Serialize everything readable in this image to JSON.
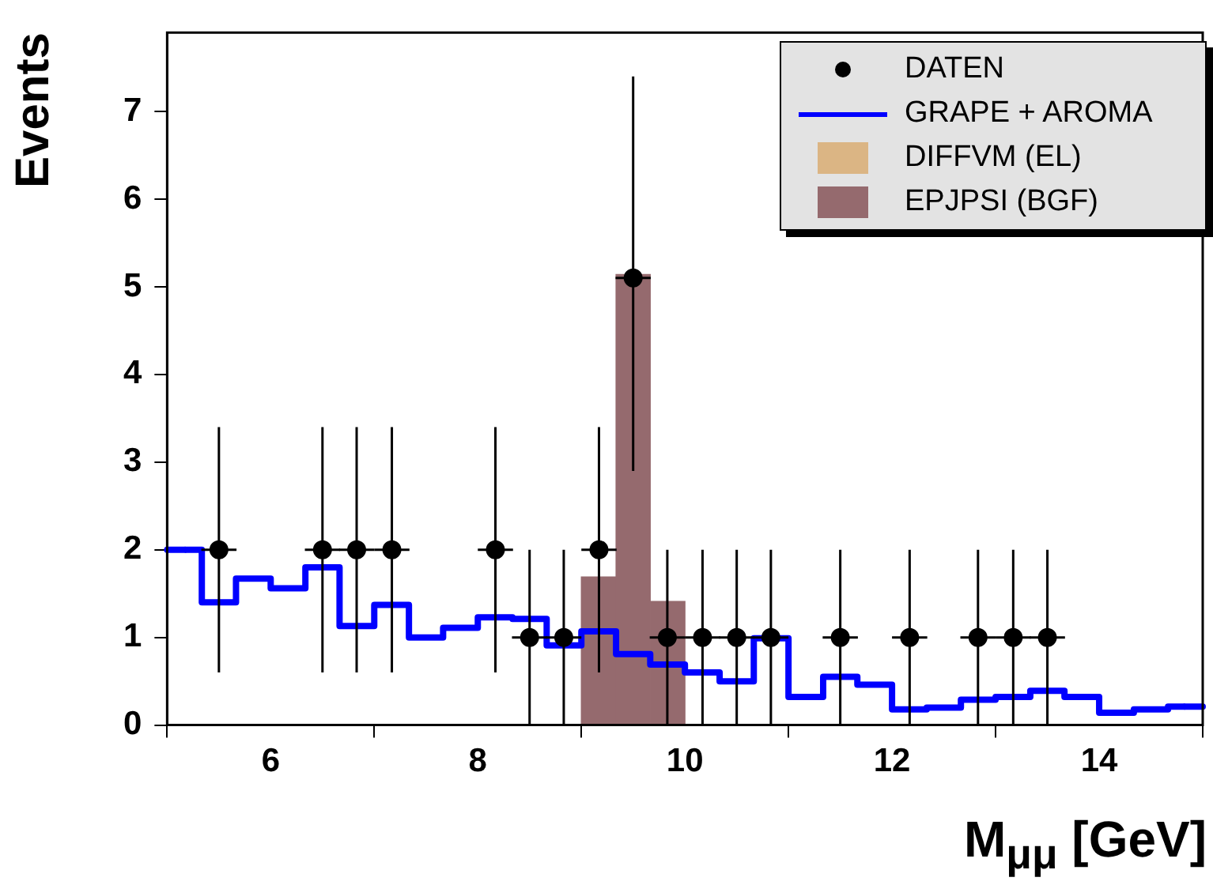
{
  "chart_data": {
    "type": "histogram",
    "xlabel": "M$_{μμ}$ [GeV]",
    "ylabel": "Events",
    "bins": [
      5,
      5.33,
      5.67,
      6,
      6.33,
      6.67,
      7,
      7.33,
      7.67,
      8,
      8.33,
      8.67,
      9,
      9.33,
      9.67,
      10,
      10.33,
      10.67,
      11,
      11.33,
      11.67,
      12,
      12.33,
      12.67,
      13,
      13.33,
      13.67,
      14,
      14.33,
      14.67,
      15
    ],
    "series": [
      {
        "name": "DATEN",
        "type": "scatter",
        "marker": "circle",
        "color": "#000000",
        "x": [
          5.5,
          6.5,
          6.83,
          7.17,
          8.17,
          8.5,
          8.83,
          9.17,
          9.5,
          9.83,
          10.17,
          10.5,
          10.83,
          11.5,
          12.17,
          12.83,
          13.17,
          13.5
        ],
        "values": [
          2,
          2,
          2,
          2,
          2,
          1,
          1,
          2,
          5.1,
          1,
          1,
          1,
          1,
          1,
          1,
          1,
          1,
          1
        ],
        "errors": [
          [
            0.6,
            3.4
          ],
          [
            0.6,
            3.4
          ],
          [
            0.6,
            3.4
          ],
          [
            0.6,
            3.4
          ],
          [
            0.6,
            3.4
          ],
          [
            0,
            2
          ],
          [
            0,
            2
          ],
          [
            0.6,
            3.4
          ],
          [
            2.9,
            7.4
          ],
          [
            0,
            2
          ],
          [
            0,
            2
          ],
          [
            0,
            2
          ],
          [
            0,
            2
          ],
          [
            0,
            2
          ],
          [
            0,
            2
          ],
          [
            0,
            2
          ],
          [
            0,
            2
          ],
          [
            0,
            2
          ]
        ],
        "xerrors": [
          0.17,
          0.17,
          0.17,
          0.17,
          0.17,
          0.17,
          0.17,
          0.17,
          0.17,
          0.17,
          0.17,
          0.17,
          0.17,
          0.17,
          0.17,
          0.17,
          0.17,
          0.17
        ]
      },
      {
        "name": "GRAPE + AROMA",
        "type": "step",
        "marker": "none",
        "color": "#0000ff",
        "x": [
          5.17,
          5.5,
          5.83,
          6.17,
          6.5,
          6.83,
          7.17,
          7.5,
          7.83,
          8.17,
          8.5,
          8.83,
          9.17,
          9.5,
          9.83,
          10.17,
          10.5,
          10.83,
          11.17,
          11.5,
          11.83,
          12.17,
          12.5,
          12.83,
          13.17,
          13.5,
          13.83,
          14.17,
          14.5,
          14.83
        ],
        "values": [
          2.0,
          1.4,
          1.67,
          1.56,
          1.8,
          1.13,
          1.37,
          1.0,
          1.11,
          1.23,
          1.21,
          0.91,
          1.07,
          0.81,
          0.69,
          0.6,
          0.5,
          0.99,
          0.32,
          0.55,
          0.46,
          0.18,
          0.2,
          0.29,
          0.32,
          0.39,
          0.32,
          0.14,
          0.18,
          0.21
        ]
      },
      {
        "name": "DIFFVM (EL)",
        "color": "#dbb584",
        "values": [
          0,
          0,
          0,
          0,
          0,
          0,
          0,
          0,
          0,
          0,
          0,
          0,
          0,
          0,
          0,
          0,
          0,
          0,
          0,
          0,
          0,
          0,
          0,
          0,
          0,
          0,
          0,
          0,
          0,
          0
        ]
      },
      {
        "name": "EPJPSI (BGF)",
        "color": "#956a6e",
        "values": [
          null,
          null,
          null,
          null,
          null,
          null,
          null,
          null,
          null,
          null,
          null,
          null,
          1.69,
          5.14,
          1.41,
          null,
          null,
          null,
          null,
          null,
          null,
          null,
          null,
          null,
          null,
          null,
          null,
          null,
          null,
          null
        ]
      }
    ],
    "xlim": [
      5,
      15
    ],
    "ylim": [
      0,
      7.9
    ],
    "xticks": [
      6,
      8,
      10,
      12,
      14
    ],
    "yticks": [
      0,
      1,
      2,
      3,
      4,
      5,
      6,
      7
    ],
    "grid": false,
    "legend": "top right"
  }
}
